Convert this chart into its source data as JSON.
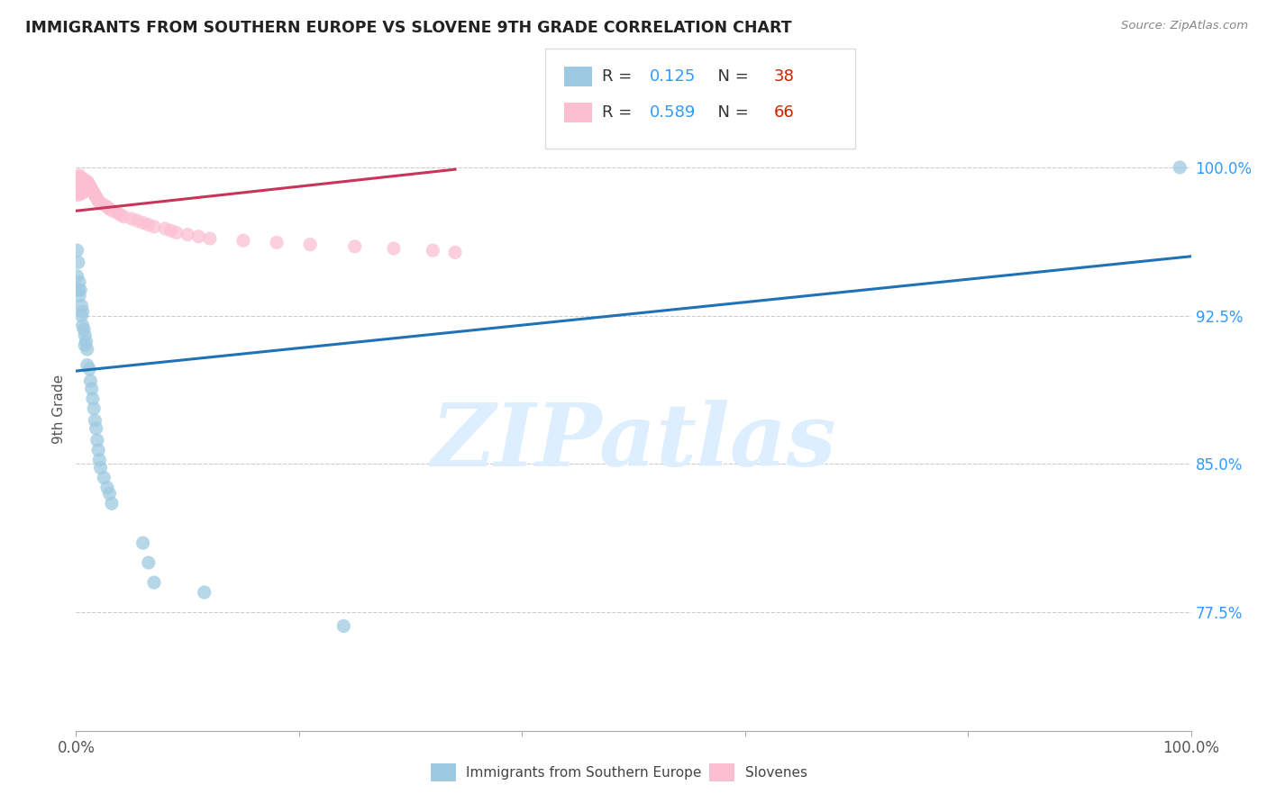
{
  "title": "IMMIGRANTS FROM SOUTHERN EUROPE VS SLOVENE 9TH GRADE CORRELATION CHART",
  "source": "Source: ZipAtlas.com",
  "ylabel": "9th Grade",
  "ytick_labels": [
    "100.0%",
    "92.5%",
    "85.0%",
    "77.5%"
  ],
  "ytick_values": [
    1.0,
    0.925,
    0.85,
    0.775
  ],
  "xlim": [
    0.0,
    1.0
  ],
  "ylim": [
    0.715,
    1.04
  ],
  "legend_r_blue": "0.125",
  "legend_n_blue": "38",
  "legend_r_pink": "0.589",
  "legend_n_pink": "66",
  "blue_scatter_x": [
    0.001,
    0.001,
    0.002,
    0.002,
    0.003,
    0.003,
    0.004,
    0.005,
    0.005,
    0.006,
    0.006,
    0.007,
    0.008,
    0.008,
    0.009,
    0.01,
    0.01,
    0.012,
    0.013,
    0.014,
    0.015,
    0.016,
    0.017,
    0.018,
    0.019,
    0.02,
    0.021,
    0.022,
    0.025,
    0.028,
    0.03,
    0.032,
    0.06,
    0.065,
    0.07,
    0.115,
    0.24,
    0.99
  ],
  "blue_scatter_y": [
    0.958,
    0.945,
    0.952,
    0.938,
    0.942,
    0.935,
    0.938,
    0.93,
    0.925,
    0.927,
    0.92,
    0.918,
    0.915,
    0.91,
    0.912,
    0.908,
    0.9,
    0.898,
    0.892,
    0.888,
    0.883,
    0.878,
    0.872,
    0.868,
    0.862,
    0.857,
    0.852,
    0.848,
    0.843,
    0.838,
    0.835,
    0.83,
    0.81,
    0.8,
    0.79,
    0.785,
    0.768,
    1.0
  ],
  "pink_scatter_x": [
    0.001,
    0.001,
    0.001,
    0.002,
    0.002,
    0.002,
    0.002,
    0.003,
    0.003,
    0.003,
    0.003,
    0.004,
    0.004,
    0.004,
    0.004,
    0.005,
    0.005,
    0.005,
    0.006,
    0.006,
    0.006,
    0.007,
    0.007,
    0.008,
    0.008,
    0.009,
    0.009,
    0.01,
    0.01,
    0.011,
    0.011,
    0.012,
    0.013,
    0.014,
    0.015,
    0.016,
    0.017,
    0.018,
    0.019,
    0.02,
    0.022,
    0.025,
    0.028,
    0.03,
    0.033,
    0.037,
    0.04,
    0.043,
    0.05,
    0.055,
    0.06,
    0.065,
    0.07,
    0.08,
    0.085,
    0.09,
    0.1,
    0.11,
    0.12,
    0.15,
    0.18,
    0.21,
    0.25,
    0.285,
    0.32,
    0.34
  ],
  "pink_scatter_y": [
    0.993,
    0.99,
    0.987,
    0.995,
    0.992,
    0.989,
    0.986,
    0.996,
    0.993,
    0.99,
    0.987,
    0.995,
    0.993,
    0.99,
    0.987,
    0.994,
    0.991,
    0.988,
    0.993,
    0.99,
    0.987,
    0.994,
    0.991,
    0.993,
    0.99,
    0.992,
    0.989,
    0.993,
    0.99,
    0.992,
    0.989,
    0.991,
    0.99,
    0.989,
    0.988,
    0.987,
    0.986,
    0.985,
    0.984,
    0.983,
    0.982,
    0.981,
    0.98,
    0.979,
    0.978,
    0.977,
    0.976,
    0.975,
    0.974,
    0.973,
    0.972,
    0.971,
    0.97,
    0.969,
    0.968,
    0.967,
    0.966,
    0.965,
    0.964,
    0.963,
    0.962,
    0.961,
    0.96,
    0.959,
    0.958,
    0.957
  ],
  "blue_line_x": [
    0.0,
    1.0
  ],
  "blue_line_y": [
    0.897,
    0.955
  ],
  "pink_line_x": [
    0.0,
    0.34
  ],
  "pink_line_y": [
    0.978,
    0.999
  ],
  "blue_color": "#9ecae1",
  "pink_color": "#fcbfd2",
  "blue_line_color": "#2171b5",
  "pink_line_color": "#c9355a",
  "grid_color": "#cccccc",
  "title_color": "#222222",
  "axis_label_color": "#555555",
  "right_tick_color": "#3399ff",
  "watermark_color": "#ddeeff",
  "watermark_text": "ZIPatlas",
  "legend_label_blue": "Immigrants from Southern Europe",
  "legend_label_pink": "Slovenes"
}
